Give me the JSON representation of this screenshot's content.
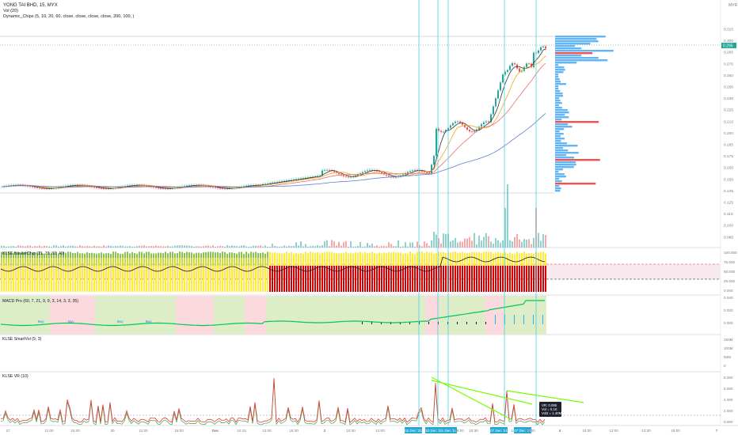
{
  "header": {
    "symbol_line": "YONG TAI BHD, 15, MYX",
    "indicator_vol": "Vol (20)",
    "indicator_chips": "Dynamic_Chips (5, 10, 20, 60, close, close, close, close, 200, 100, )"
  },
  "price_axis": {
    "currency": "MYR",
    "ticks": [
      "0.315",
      "0.300",
      "0.285",
      "0.270",
      "0.260",
      "0.250",
      "0.235",
      "0.225",
      "0.210",
      "0.200",
      "0.185",
      "0.175",
      "0.160",
      "0.150",
      "0.135",
      "0.125",
      "0.110",
      "0.100",
      "0.085"
    ],
    "last_price_label": "0.295"
  },
  "panels": {
    "banker": {
      "title": "KLSE BankerChip (21, 70, 30, 40)",
      "ticks": [
        "100.000",
        "75.000",
        "50.000",
        "25.000",
        "0.000"
      ]
    },
    "macd": {
      "title": "MACD Pro (60, 7, 21, 9, 9, 3, 14, 3, 3, 35)",
      "ticks": [
        "0.040",
        "0.020",
        "0.000"
      ],
      "buy_label": "Buy"
    },
    "smartvol": {
      "title": "KLSE SmartVol (9, 3)",
      "ticks": [
        "150M",
        "100M",
        "50M",
        "0"
      ]
    },
    "vr": {
      "title": "KLSE VR (10)",
      "ticks": [
        "8.000",
        "6.000",
        "4.000",
        "2.000",
        "0.000"
      ],
      "tooltip": [
        "VR: 0.095",
        "Vol = 5.1K",
        "Vol2 = 1.40M"
      ]
    }
  },
  "time_axis": {
    "labels": [
      "27",
      "11:00",
      "15:00",
      "30",
      "11:00",
      "15:00",
      "Dec",
      "10:15",
      "12:00",
      "15:30",
      "2",
      "10:30",
      "12:00",
      "02 Dec '21",
      "10 Dec '21",
      "01 Dec '21",
      "09:00",
      "10:30",
      "07 Dec '21",
      "14:30",
      "07 Dec '21",
      "09:00",
      "4",
      "10:30",
      "12:00",
      "13:30",
      "15:00",
      "7"
    ]
  },
  "colors": {
    "up": "#26a69a",
    "down": "#ef5350",
    "ma_black": "#333333",
    "ma_orange": "#f5a623",
    "ma_red": "#f06c6c",
    "ma_blue": "#5b7fd6",
    "vline": "#4dd0e1",
    "profile": "#64b5f6",
    "profile_hot": "#ef5350",
    "grid": "#eeeeee"
  }
}
